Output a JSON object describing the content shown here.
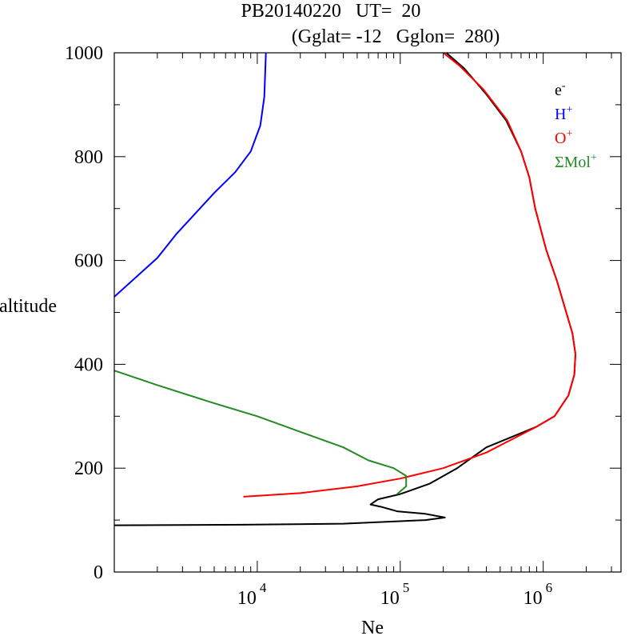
{
  "chart_data": {
    "type": "line",
    "title_line1": "PB20140220   UT=  20",
    "title_line2": "(Gglat= -12   Gglon=  280)",
    "xlabel": "Ne",
    "ylabel": "altitude",
    "x_scale": "log",
    "xlim": [
      1000,
      3500000
    ],
    "ylim": [
      0,
      1000
    ],
    "x_tick_labels": [
      {
        "value": 10000,
        "base": "10",
        "exp": "4"
      },
      {
        "value": 100000,
        "base": "10",
        "exp": "5"
      },
      {
        "value": 1000000,
        "base": "10",
        "exp": "6"
      }
    ],
    "y_ticks": [
      0,
      200,
      400,
      600,
      800,
      1000
    ],
    "legend_position": "top-right",
    "series": [
      {
        "name": "e",
        "sup": "-",
        "color": "#000000",
        "points": [
          [
            1000,
            90
          ],
          [
            8000,
            91
          ],
          [
            40000,
            93
          ],
          [
            150000,
            100
          ],
          [
            205000,
            105
          ],
          [
            150000,
            112
          ],
          [
            95000,
            117
          ],
          [
            75000,
            125
          ],
          [
            62000,
            130
          ],
          [
            70000,
            140
          ],
          [
            100000,
            150
          ],
          [
            160000,
            170
          ],
          [
            250000,
            200
          ],
          [
            400000,
            240
          ],
          [
            600000,
            260
          ],
          [
            900000,
            280
          ],
          [
            1200000,
            300
          ],
          [
            1500000,
            340
          ],
          [
            1650000,
            380
          ],
          [
            1680000,
            420
          ],
          [
            1600000,
            460
          ],
          [
            1450000,
            500
          ],
          [
            1250000,
            560
          ],
          [
            1050000,
            620
          ],
          [
            880000,
            700
          ],
          [
            800000,
            760
          ],
          [
            700000,
            810
          ],
          [
            550000,
            870
          ],
          [
            400000,
            920
          ],
          [
            280000,
            970
          ],
          [
            210000,
            1000
          ]
        ]
      },
      {
        "name": "H",
        "sup": "+",
        "color": "#0000ff",
        "points": [
          [
            1000,
            530
          ],
          [
            2000,
            605
          ],
          [
            2700,
            650
          ],
          [
            5000,
            730
          ],
          [
            7000,
            770
          ],
          [
            9000,
            810
          ],
          [
            10500,
            860
          ],
          [
            11200,
            915
          ],
          [
            11500,
            1000
          ]
        ]
      },
      {
        "name": "O",
        "sup": "+",
        "color": "#ff0000",
        "points": [
          [
            8000,
            145
          ],
          [
            20000,
            152
          ],
          [
            50000,
            165
          ],
          [
            100000,
            180
          ],
          [
            200000,
            200
          ],
          [
            400000,
            230
          ],
          [
            600000,
            255
          ],
          [
            900000,
            280
          ],
          [
            1200000,
            300
          ],
          [
            1500000,
            340
          ],
          [
            1650000,
            380
          ],
          [
            1680000,
            420
          ],
          [
            1600000,
            460
          ],
          [
            1450000,
            500
          ],
          [
            1250000,
            560
          ],
          [
            1050000,
            620
          ],
          [
            880000,
            700
          ],
          [
            800000,
            760
          ],
          [
            700000,
            810
          ],
          [
            560000,
            870
          ],
          [
            380000,
            930
          ],
          [
            260000,
            975
          ],
          [
            200000,
            1000
          ]
        ]
      },
      {
        "name": "ΣMol",
        "sup": "+",
        "color": "#228b22",
        "points": [
          [
            1000,
            388
          ],
          [
            2000,
            360
          ],
          [
            5000,
            325
          ],
          [
            10000,
            300
          ],
          [
            20000,
            270
          ],
          [
            40000,
            240
          ],
          [
            60000,
            215
          ],
          [
            90000,
            200
          ],
          [
            110000,
            185
          ],
          [
            110000,
            165
          ],
          [
            95000,
            150
          ]
        ]
      }
    ]
  }
}
